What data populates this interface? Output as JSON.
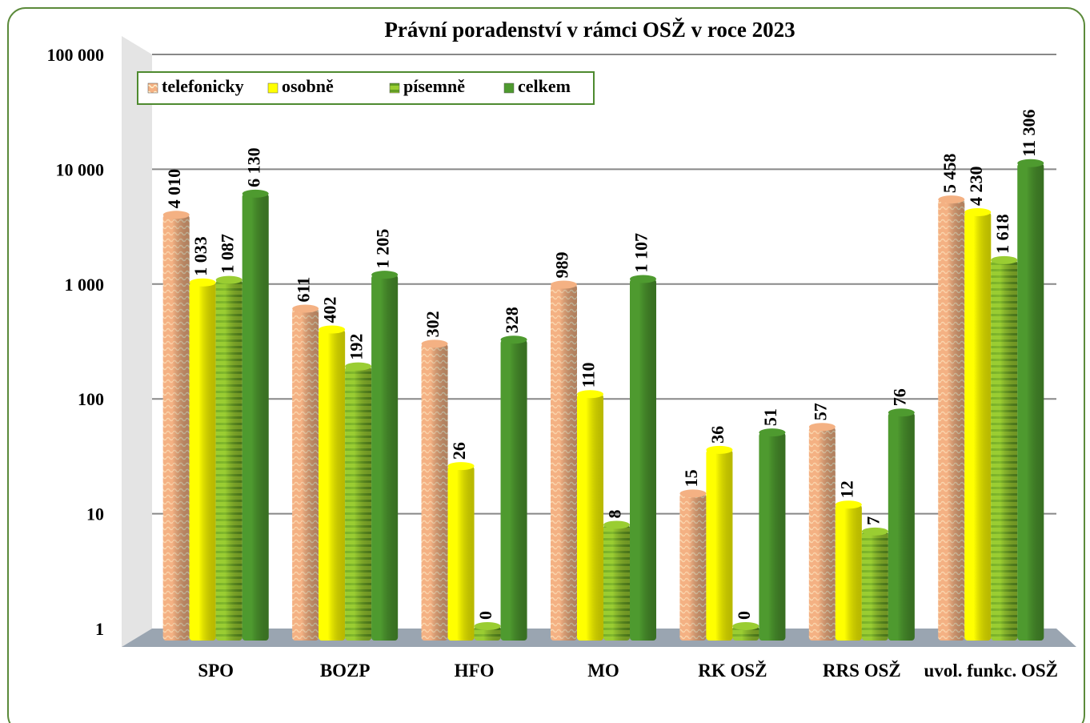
{
  "chart_data": {
    "type": "bar",
    "title": "Právní poradenství v rámci OSŽ v roce 2023",
    "categories": [
      "SPO",
      "BOZP",
      "HFO",
      "MO",
      "RK OSŽ",
      "RRS OSŽ",
      "uvol. funkc. OSŽ"
    ],
    "series": [
      {
        "name": "telefonicky",
        "color": "#f4b183",
        "values": [
          4010,
          611,
          302,
          989,
          15,
          57,
          5458
        ],
        "value_labels": [
          "4 010",
          "611",
          "302",
          "989",
          "15",
          "57",
          "5 458"
        ]
      },
      {
        "name": "osobně",
        "color": "#ffff00",
        "values": [
          1033,
          402,
          26,
          110,
          36,
          12,
          4230
        ],
        "value_labels": [
          "1 033",
          "402",
          "26",
          "110",
          "36",
          "12",
          "4 230"
        ]
      },
      {
        "name": "písemně",
        "color": "#9acd32",
        "values": [
          1087,
          192,
          0,
          8,
          0,
          7,
          1618
        ],
        "value_labels": [
          "1 087",
          "192",
          "0",
          "8",
          "0",
          "7",
          "1 618"
        ]
      },
      {
        "name": "celkem",
        "color": "#4e9a2f",
        "values": [
          6130,
          1205,
          328,
          1107,
          51,
          76,
          11306
        ],
        "value_labels": [
          "6 130",
          "1 205",
          "328",
          "1 107",
          "51",
          "76",
          "11 306"
        ]
      }
    ],
    "ylim": [
      1,
      100000
    ],
    "log_scale": true,
    "yticks": [
      1,
      10,
      100,
      {
        "value": 1000,
        "label": "1 000"
      },
      {
        "value": 10000,
        "label": "10 000"
      },
      {
        "value": 100000,
        "label": "100 000"
      }
    ],
    "grid": true,
    "legend": "top-left"
  }
}
